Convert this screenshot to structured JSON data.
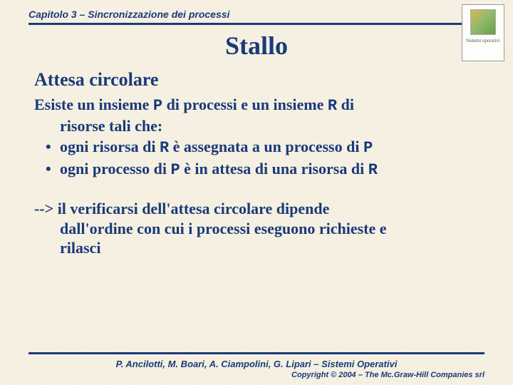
{
  "header": {
    "chapter": "Capitolo 3 – Sincronizzazione dei processi",
    "logo_caption": "Sistemi operativi"
  },
  "title": "Stallo",
  "subtitle": "Attesa circolare",
  "intro_line1_a": "Esiste un insieme ",
  "intro_line1_b": " di processi e un insieme ",
  "intro_line1_c": " di",
  "intro_line2": "risorse tali che:",
  "P": "P",
  "R": "R",
  "bullet1_a": "ogni risorsa di ",
  "bullet1_b": " è assegnata a un processo di ",
  "bullet2_a": "ogni processo di ",
  "bullet2_b": " è in attesa di una risorsa di ",
  "arrow_line1": "--> il verificarsi dell'attesa circolare dipende",
  "arrow_line2": "dall'ordine con cui i processi eseguono richieste e",
  "arrow_line3": "rilasci",
  "footer": {
    "authors": "P. Ancilotti, M. Boari, A. Ciampolini, G. Lipari – Sistemi Operativi",
    "copyright": "Copyright © 2004 – The Mc.Graw-Hill Companies srl"
  },
  "colors": {
    "primary": "#1a3a7a",
    "background": "#f5f0e1"
  }
}
